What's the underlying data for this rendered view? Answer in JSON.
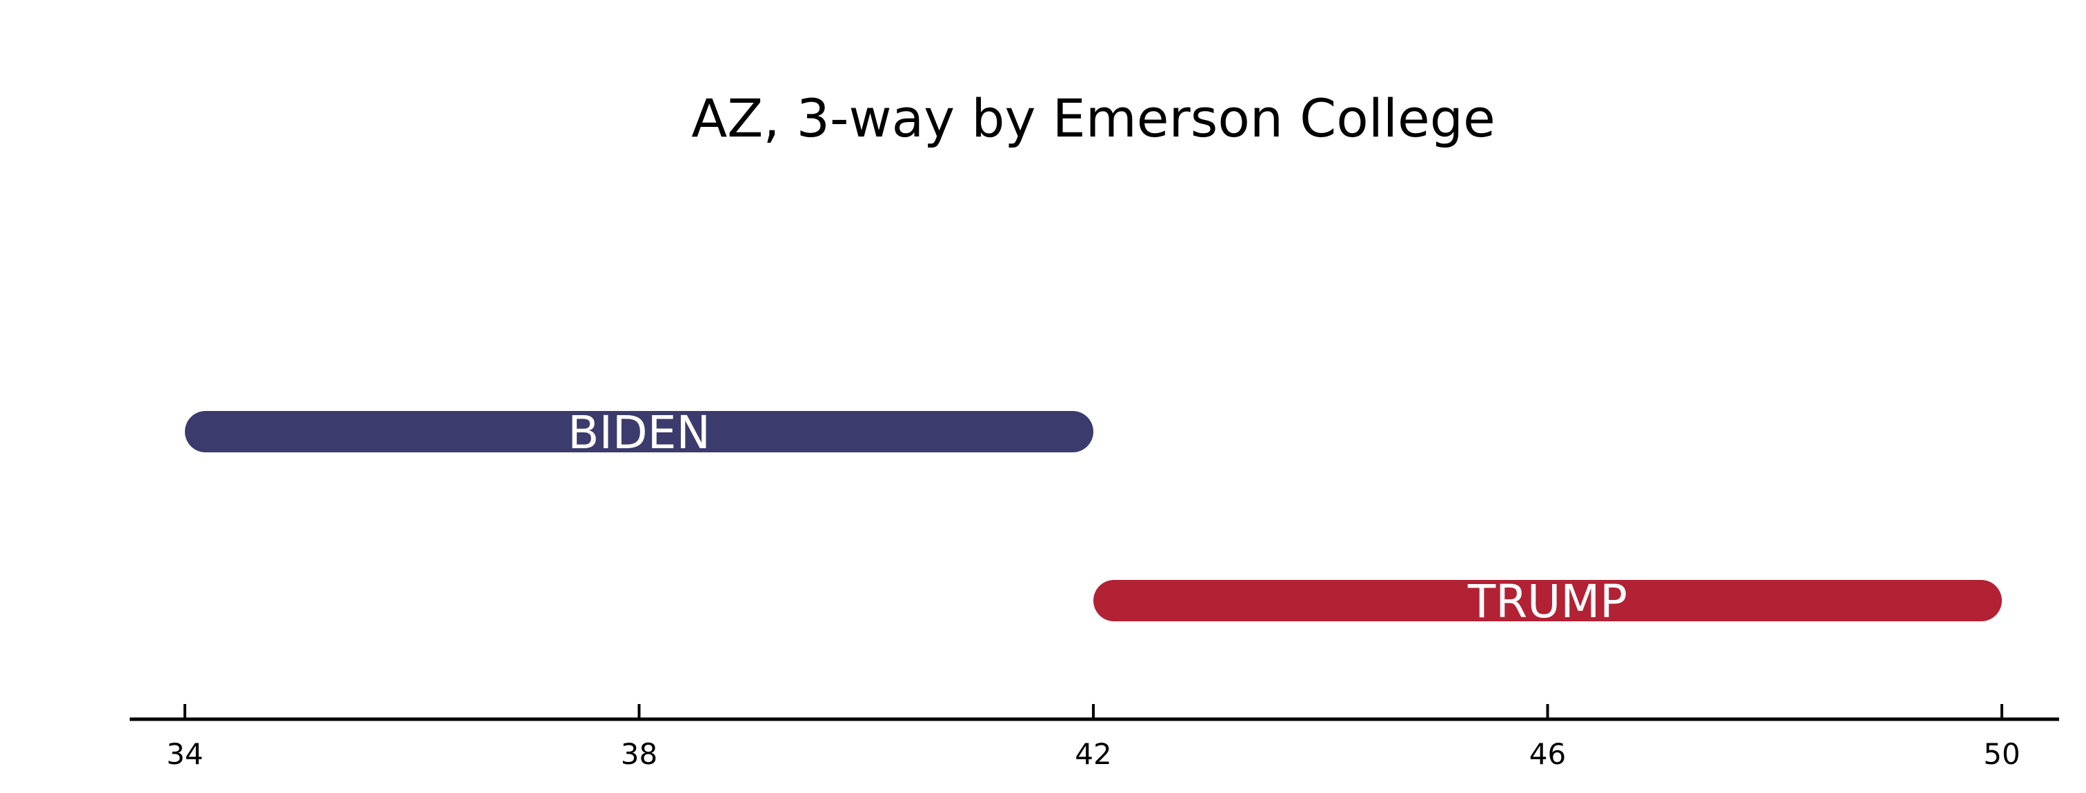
{
  "chart_data": {
    "type": "bar",
    "orientation": "horizontal-range",
    "title": "AZ, 3-way by Emerson College",
    "xlabel": "",
    "ylabel": "",
    "xlim": [
      33.6,
      50.4
    ],
    "xticks": [
      34,
      38,
      42,
      46,
      50
    ],
    "xtick_labels": [
      "34",
      "38",
      "42",
      "46",
      "50"
    ],
    "grid": false,
    "legend": "none",
    "bars": [
      {
        "label": "BIDEN",
        "start": 34,
        "end": 42,
        "color": "#3b3b6d"
      },
      {
        "label": "TRUMP",
        "start": 42,
        "end": 50,
        "color": "#b22234"
      }
    ]
  }
}
